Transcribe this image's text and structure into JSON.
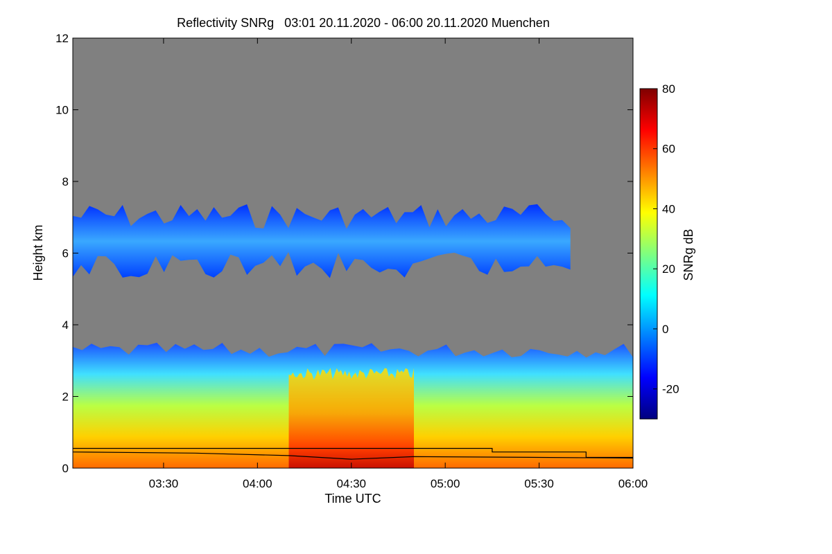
{
  "chart_data": {
    "type": "heatmap",
    "title": "Reflectivity SNRg   03:01 20.11.2020 - 06:00 20.11.2020 Muenchen",
    "xlabel": "Time UTC",
    "ylabel": "Height km",
    "colorbar_label": "SNRg dB",
    "xlim": [
      "03:01",
      "06:00"
    ],
    "ylim": [
      0,
      12
    ],
    "x_ticks": [
      "03:30",
      "04:00",
      "04:30",
      "05:00",
      "05:30",
      "06:00"
    ],
    "y_ticks": [
      0,
      2,
      4,
      6,
      8,
      10,
      12
    ],
    "colorbar_range": [
      -30,
      80
    ],
    "colorbar_ticks": [
      -20,
      0,
      20,
      40,
      60,
      80
    ],
    "background_color": "#808080",
    "colormap": [
      "#00007f",
      "#0000ff",
      "#007fff",
      "#00ffff",
      "#7fff7f",
      "#ffff00",
      "#ff7f00",
      "#ff0000",
      "#7f0000"
    ],
    "layers": [
      {
        "name": "upper cloud",
        "time_start": "03:01",
        "time_end": "05:40",
        "height_base_km": 5.3,
        "height_top_km": 7.4,
        "snr_db": -10
      },
      {
        "name": "lower cloud",
        "time_start": "03:01",
        "time_end": "06:00",
        "height_base_km": 0,
        "height_top_km": 3.5,
        "snr_db": 30
      },
      {
        "name": "core",
        "time_start": "04:10",
        "time_end": "04:50",
        "height_base_km": 0,
        "height_top_km": 2.8,
        "snr_db": 55
      }
    ],
    "lines": [
      {
        "points": [
          [
            "03:01",
            0.55
          ],
          [
            "05:15",
            0.55
          ],
          [
            "05:15",
            0.45
          ],
          [
            "05:45",
            0.45
          ],
          [
            "05:45",
            0.3
          ],
          [
            "06:00",
            0.3
          ]
        ]
      },
      {
        "points": [
          [
            "03:01",
            0.45
          ],
          [
            "03:40",
            0.42
          ],
          [
            "04:10",
            0.35
          ],
          [
            "04:30",
            0.25
          ],
          [
            "04:50",
            0.32
          ],
          [
            "05:30",
            0.3
          ],
          [
            "06:00",
            0.28
          ]
        ]
      }
    ],
    "grid": false
  }
}
